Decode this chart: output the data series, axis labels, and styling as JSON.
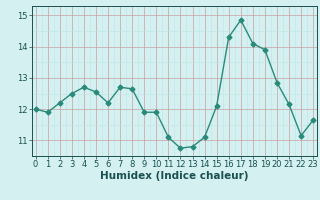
{
  "x": [
    0,
    1,
    2,
    3,
    4,
    5,
    6,
    7,
    8,
    9,
    10,
    11,
    12,
    13,
    14,
    15,
    16,
    17,
    18,
    19,
    20,
    21,
    22,
    23
  ],
  "y": [
    12.0,
    11.9,
    12.2,
    12.5,
    12.7,
    12.55,
    12.2,
    12.7,
    12.65,
    11.9,
    11.9,
    11.1,
    10.75,
    10.8,
    11.1,
    12.1,
    14.3,
    14.85,
    14.1,
    13.9,
    12.85,
    12.15,
    11.15,
    11.65
  ],
  "line_color": "#2a8a7a",
  "marker": "D",
  "marker_size": 2.5,
  "line_width": 1.0,
  "bg_color": "#d4f0f0",
  "grid_color_major": "#c8a0a0",
  "grid_color_minor": "#c0e4e4",
  "xlabel": "Humidex (Indice chaleur)",
  "xlabel_fontsize": 7.5,
  "yticks": [
    11,
    12,
    13,
    14,
    15
  ],
  "xticks": [
    0,
    1,
    2,
    3,
    4,
    5,
    6,
    7,
    8,
    9,
    10,
    11,
    12,
    13,
    14,
    15,
    16,
    17,
    18,
    19,
    20,
    21,
    22,
    23
  ],
  "xlim": [
    -0.3,
    23.3
  ],
  "ylim": [
    10.5,
    15.3
  ],
  "tick_fontsize": 6,
  "tick_color": "#1a5050"
}
